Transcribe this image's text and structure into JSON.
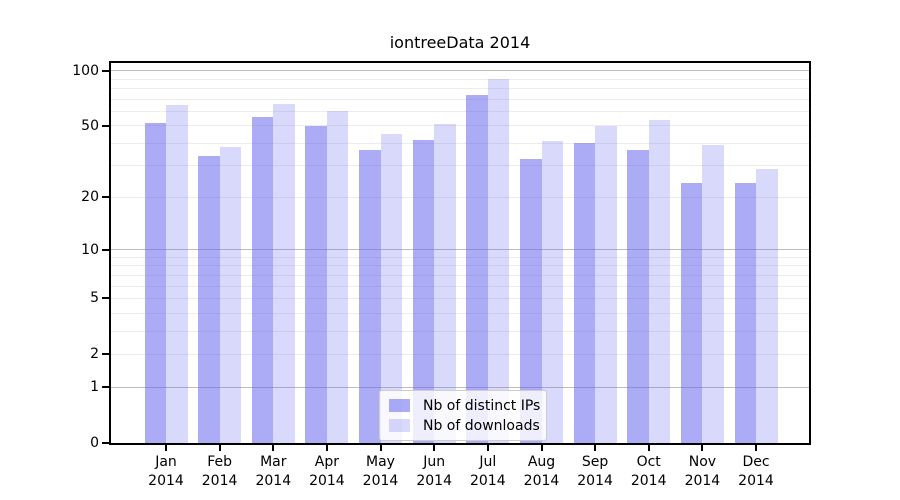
{
  "chart_data": {
    "type": "bar",
    "title": "iontreeData 2014",
    "categories": [
      "Jan",
      "Feb",
      "Mar",
      "Apr",
      "May",
      "Jun",
      "Jul",
      "Aug",
      "Sep",
      "Oct",
      "Nov",
      "Dec"
    ],
    "category_year": "2014",
    "series": [
      {
        "name": "Nb of distinct IPs",
        "color": "rgba(102,102,238,0.55)",
        "values": [
          52,
          34,
          56,
          50,
          37,
          42,
          74,
          33,
          40,
          37,
          24,
          24
        ]
      },
      {
        "name": "Nb of downloads",
        "color": "rgba(102,102,238,0.25)",
        "values": [
          65,
          38,
          66,
          60,
          45,
          51,
          90,
          41,
          50,
          54,
          39,
          29
        ]
      }
    ],
    "xlabel": "",
    "ylabel": "",
    "y_axis": {
      "scale": "log1p",
      "tick_labels": [
        0,
        1,
        2,
        5,
        10,
        20,
        50,
        100
      ],
      "minor_gridlines": [
        2,
        3,
        4,
        5,
        6,
        7,
        8,
        9,
        20,
        30,
        40,
        50,
        60,
        70,
        80,
        90
      ],
      "major_gridlines": [
        1,
        10,
        100
      ],
      "max": 110
    },
    "ylim": [
      0,
      110
    ],
    "grid": true,
    "legend_position": "lower center",
    "colors": {
      "grid_minor": "#ececec",
      "grid_major": "#bdbdbd",
      "spine": "#000000",
      "background": "#ffffff"
    }
  }
}
